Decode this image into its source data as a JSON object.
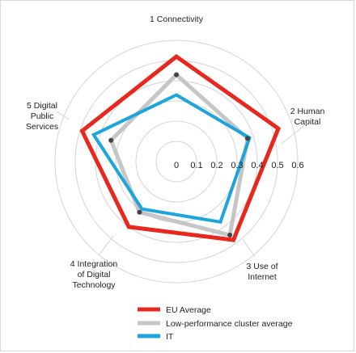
{
  "chart_data": {
    "type": "radar",
    "title": "",
    "axes": [
      [
        "1 Connectivity"
      ],
      [
        "2 Human",
        "Capital"
      ],
      [
        "3 Use of",
        "Internet"
      ],
      [
        "4 Integration",
        "of Digital",
        "Technology"
      ],
      [
        "5 Digital",
        "Public",
        "Services"
      ]
    ],
    "ticks": [
      "0",
      "0.1",
      "0.2",
      "0.3",
      "0.4",
      "0.5",
      "0.6"
    ],
    "range": [
      0,
      0.6
    ],
    "grid": true,
    "legend_position": "bottom",
    "series": [
      {
        "name": "EU Average",
        "color": "#e8281e",
        "values": [
          0.52,
          0.53,
          0.48,
          0.4,
          0.49
        ]
      },
      {
        "name": "Low-performance cluster average",
        "color": "#c6c6c6",
        "values": [
          0.43,
          0.37,
          0.45,
          0.31,
          0.34
        ]
      },
      {
        "name": "IT",
        "color": "#1ba5dc",
        "values": [
          0.33,
          0.38,
          0.37,
          0.29,
          0.43
        ]
      }
    ]
  }
}
